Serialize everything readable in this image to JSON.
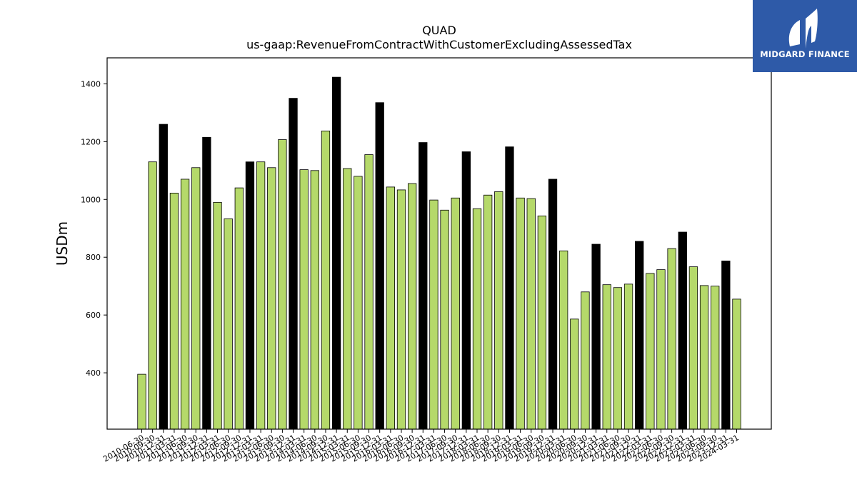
{
  "chart_data": {
    "type": "bar",
    "title": "QUAD",
    "subtitle": "us-gaap:RevenueFromContractWithCustomerExcludingAssessedTax",
    "xlabel": "",
    "ylabel": "USDm",
    "ylim": [
      205,
      1490
    ],
    "yticks": [
      400,
      600,
      800,
      1000,
      1200,
      1400
    ],
    "grid": false,
    "colors": {
      "quarter": "#b5d96a",
      "fiscal_year": "#000000",
      "edge": "#000000"
    },
    "categories": [
      "2010-06-30",
      "2010-09-30",
      "2010-12-31",
      "2011-03-31",
      "2011-06-30",
      "2011-09-30",
      "2011-12-31",
      "2012-03-31",
      "2012-06-30",
      "2012-09-30",
      "2012-12-31",
      "2013-03-31",
      "2013-06-30",
      "2013-09-30",
      "2013-12-31",
      "2014-03-31",
      "2014-06-30",
      "2014-09-30",
      "2014-12-31",
      "2015-03-31",
      "2015-06-30",
      "2015-09-30",
      "2015-12-31",
      "2016-03-31",
      "2016-06-30",
      "2016-09-30",
      "2016-12-31",
      "2017-03-31",
      "2017-06-30",
      "2017-09-30",
      "2017-12-31",
      "2018-03-31",
      "2018-06-30",
      "2018-09-30",
      "2018-12-31",
      "2019-03-31",
      "2019-06-30",
      "2019-09-30",
      "2019-12-31",
      "2020-03-31",
      "2020-06-30",
      "2020-09-30",
      "2020-12-31",
      "2021-03-31",
      "2021-06-30",
      "2021-09-30",
      "2021-12-31",
      "2022-03-31",
      "2022-06-30",
      "2022-09-30",
      "2022-12-31",
      "2023-03-31",
      "2023-06-30",
      "2023-09-30",
      "2023-12-31",
      "2024-03-31"
    ],
    "values": [
      395,
      1130,
      1260,
      1022,
      1070,
      1110,
      1215,
      990,
      933,
      1040,
      1130,
      1130,
      1110,
      1207,
      1350,
      1103,
      1100,
      1237,
      1423,
      1107,
      1080,
      1155,
      1335,
      1043,
      1033,
      1055,
      1197,
      998,
      963,
      1005,
      1165,
      968,
      1015,
      1027,
      1182,
      1005,
      1003,
      943,
      1070,
      822,
      586,
      680,
      845,
      705,
      695,
      707,
      855,
      744,
      757,
      830,
      887,
      767,
      702,
      700,
      787,
      655
    ],
    "fiscal_year_flags": [
      false,
      false,
      true,
      false,
      false,
      false,
      true,
      false,
      false,
      false,
      true,
      false,
      false,
      false,
      true,
      false,
      false,
      false,
      true,
      false,
      false,
      false,
      true,
      false,
      false,
      false,
      true,
      false,
      false,
      false,
      true,
      false,
      false,
      false,
      true,
      false,
      false,
      false,
      true,
      false,
      false,
      false,
      true,
      false,
      false,
      false,
      true,
      false,
      false,
      false,
      true,
      false,
      false,
      false,
      true,
      false
    ]
  },
  "logo": {
    "text": "MIDGARD FINANCE",
    "icon": "midgard-logo-icon"
  }
}
